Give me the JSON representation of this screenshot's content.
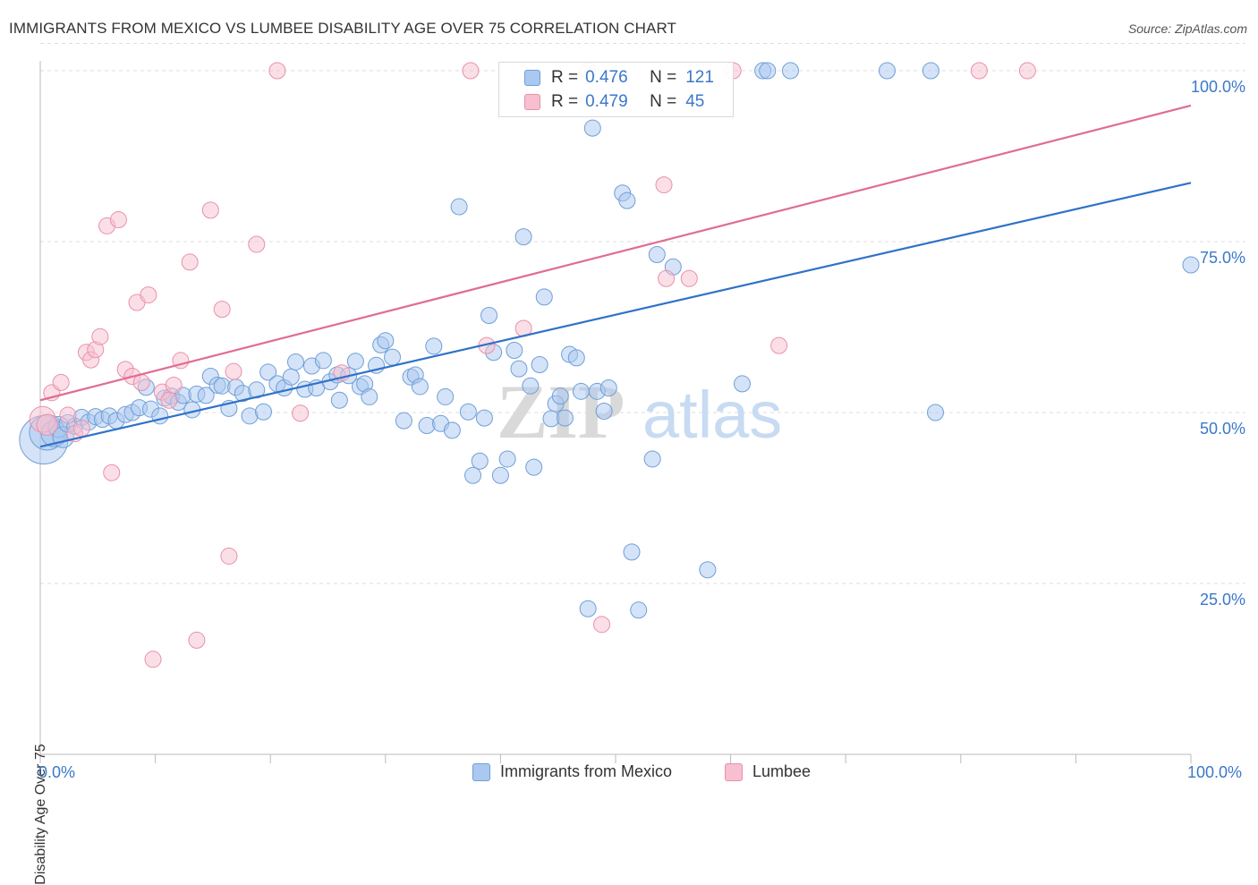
{
  "header": {
    "title": "IMMIGRANTS FROM MEXICO VS LUMBEE DISABILITY AGE OVER 75 CORRELATION CHART",
    "source": "Source: ZipAtlas.com"
  },
  "watermark": {
    "zip": "ZIP",
    "atlas": "atlas"
  },
  "colors": {
    "blue_fill": "#aac8f0",
    "blue_stroke": "#6f9fd8",
    "blue_line": "#2f72c8",
    "pink_fill": "#f7bfd0",
    "pink_stroke": "#e890ac",
    "pink_line": "#e06c93",
    "tick_text": "#3a78c9",
    "grid": "#dddddd"
  },
  "legend_top": {
    "rows": [
      {
        "r_label": "R =",
        "r_value": "0.476",
        "n_label": "N =",
        "n_value": "121"
      },
      {
        "r_label": "R =",
        "r_value": "0.479",
        "n_label": "N =",
        "n_value": "45"
      }
    ]
  },
  "legend_bottom": {
    "items": [
      "Immigrants from Mexico",
      "Lumbee"
    ]
  },
  "chart_data": {
    "type": "scatter",
    "title": "IMMIGRANTS FROM MEXICO VS LUMBEE DISABILITY AGE OVER 75 CORRELATION CHART",
    "xlabel": "",
    "ylabel": "Disability Age Over 75",
    "xlim": [
      0,
      100
    ],
    "ylim": [
      0,
      104
    ],
    "x_tick_labels": [
      "0.0%",
      "100.0%"
    ],
    "y_ticks": [
      25,
      50,
      75,
      100
    ],
    "y_tick_labels": [
      "25.0%",
      "50.0%",
      "75.0%",
      "100.0%"
    ],
    "grid": "horizontal dashed",
    "legend_position": "top-center",
    "series": [
      {
        "name": "Immigrants from Mexico",
        "color": "#aac8f0",
        "trend": {
          "x": [
            0,
            100
          ],
          "y": [
            45.0,
            83.6
          ]
        },
        "points": [
          [
            0.3,
            46.0,
            3
          ],
          [
            0.6,
            47.1,
            2.2
          ],
          [
            1.2,
            46.9,
            1.6
          ],
          [
            1.6,
            47.9,
            1.3
          ],
          [
            2.0,
            46.4,
            1.3
          ],
          [
            2.4,
            48.4,
            1.1
          ],
          [
            3.0,
            48.0,
            1
          ],
          [
            3.6,
            49.3,
            1
          ],
          [
            4.2,
            48.6,
            1
          ],
          [
            4.8,
            49.4,
            1
          ],
          [
            5.4,
            49.0,
            1
          ],
          [
            6.0,
            49.5,
            1
          ],
          [
            6.6,
            48.8,
            1
          ],
          [
            7.4,
            49.7,
            1
          ],
          [
            8.0,
            50.0,
            1
          ],
          [
            8.6,
            50.7,
            1
          ],
          [
            9.2,
            53.7,
            1
          ],
          [
            9.6,
            50.5,
            1
          ],
          [
            10.4,
            49.5,
            1
          ],
          [
            10.8,
            52.1,
            1
          ],
          [
            11.4,
            52.4,
            1
          ],
          [
            12.0,
            51.5,
            1
          ],
          [
            12.4,
            52.5,
            1
          ],
          [
            13.2,
            50.4,
            1
          ],
          [
            13.6,
            52.7,
            1
          ],
          [
            14.4,
            52.5,
            1
          ],
          [
            14.8,
            55.3,
            1
          ],
          [
            15.4,
            54.0,
            1
          ],
          [
            15.8,
            53.9,
            1
          ],
          [
            16.4,
            50.6,
            1
          ],
          [
            17.0,
            53.7,
            1
          ],
          [
            17.6,
            52.8,
            1
          ],
          [
            18.2,
            49.5,
            1
          ],
          [
            18.8,
            53.3,
            1
          ],
          [
            19.4,
            50.1,
            1
          ],
          [
            19.8,
            55.9,
            1
          ],
          [
            20.6,
            54.2,
            1
          ],
          [
            21.2,
            53.6,
            1
          ],
          [
            21.8,
            55.2,
            1
          ],
          [
            22.2,
            57.4,
            1
          ],
          [
            23.0,
            53.4,
            1
          ],
          [
            23.6,
            56.8,
            1
          ],
          [
            24.0,
            53.6,
            1
          ],
          [
            24.6,
            57.6,
            1
          ],
          [
            25.2,
            54.5,
            1
          ],
          [
            25.8,
            55.5,
            1
          ],
          [
            26.0,
            51.8,
            1
          ],
          [
            26.8,
            55.4,
            1
          ],
          [
            27.4,
            57.5,
            1
          ],
          [
            27.8,
            53.8,
            1
          ],
          [
            28.2,
            54.2,
            1
          ],
          [
            28.6,
            52.3,
            1
          ],
          [
            29.2,
            56.9,
            1
          ],
          [
            29.6,
            59.9,
            1
          ],
          [
            30.0,
            60.5,
            1
          ],
          [
            30.6,
            58.1,
            1
          ],
          [
            31.6,
            48.8,
            1
          ],
          [
            32.2,
            55.2,
            1
          ],
          [
            32.6,
            55.5,
            1
          ],
          [
            33.0,
            53.8,
            1
          ],
          [
            33.6,
            48.1,
            1
          ],
          [
            34.2,
            59.7,
            1
          ],
          [
            34.8,
            48.4,
            1
          ],
          [
            35.2,
            52.3,
            1
          ],
          [
            35.8,
            47.4,
            1
          ],
          [
            36.4,
            80.1,
            1
          ],
          [
            37.2,
            50.1,
            1
          ],
          [
            37.6,
            40.8,
            1
          ],
          [
            38.2,
            42.9,
            1
          ],
          [
            38.6,
            49.2,
            1
          ],
          [
            39.0,
            64.2,
            1
          ],
          [
            39.4,
            58.8,
            1
          ],
          [
            40.0,
            40.8,
            1
          ],
          [
            40.6,
            43.2,
            1
          ],
          [
            41.2,
            59.1,
            1
          ],
          [
            41.6,
            56.4,
            1
          ],
          [
            42.0,
            75.7,
            1
          ],
          [
            42.6,
            53.9,
            1
          ],
          [
            42.9,
            42.0,
            1
          ],
          [
            43.4,
            57.0,
            1
          ],
          [
            43.8,
            66.9,
            1
          ],
          [
            44.4,
            49.1,
            1
          ],
          [
            44.8,
            51.3,
            1
          ],
          [
            45.2,
            52.4,
            1
          ],
          [
            45.6,
            49.2,
            1
          ],
          [
            46.0,
            58.5,
            1
          ],
          [
            46.6,
            58.0,
            1
          ],
          [
            47.0,
            53.1,
            1
          ],
          [
            47.6,
            21.3,
            1
          ],
          [
            48.0,
            91.6,
            1
          ],
          [
            48.4,
            53.1,
            1
          ],
          [
            49.0,
            50.2,
            1
          ],
          [
            49.4,
            53.6,
            1
          ],
          [
            50.6,
            82.1,
            1
          ],
          [
            51.0,
            81.0,
            1
          ],
          [
            51.4,
            29.6,
            1
          ],
          [
            52.0,
            21.1,
            1
          ],
          [
            53.2,
            43.2,
            1
          ],
          [
            53.6,
            73.1,
            1
          ],
          [
            55.0,
            71.3,
            1
          ],
          [
            58.0,
            27.0,
            1
          ],
          [
            61.0,
            54.2,
            1
          ],
          [
            62.8,
            100.0,
            1
          ],
          [
            63.2,
            100.0,
            1
          ],
          [
            65.2,
            100.0,
            1
          ],
          [
            73.6,
            100.0,
            1
          ],
          [
            77.4,
            100.0,
            1
          ],
          [
            77.8,
            50.0,
            1
          ],
          [
            100.0,
            71.6,
            1
          ]
        ]
      },
      {
        "name": "Lumbee",
        "color": "#f7bfd0",
        "trend": {
          "x": [
            0,
            100
          ],
          "y": [
            51.8,
            94.9
          ]
        },
        "points": [
          [
            0.2,
            49.0,
            1.6
          ],
          [
            0.6,
            48.2,
            1.3
          ],
          [
            1.0,
            52.9,
            1
          ],
          [
            1.8,
            54.4,
            1
          ],
          [
            2.4,
            49.6,
            1
          ],
          [
            3.0,
            46.9,
            1
          ],
          [
            3.6,
            47.7,
            1
          ],
          [
            4.0,
            58.8,
            1
          ],
          [
            4.4,
            57.7,
            1
          ],
          [
            4.8,
            59.2,
            1
          ],
          [
            5.2,
            61.1,
            1
          ],
          [
            5.8,
            77.3,
            1
          ],
          [
            6.2,
            41.2,
            1
          ],
          [
            6.8,
            78.2,
            1
          ],
          [
            7.4,
            56.3,
            1
          ],
          [
            8.0,
            55.3,
            1
          ],
          [
            8.4,
            66.1,
            1
          ],
          [
            8.8,
            54.4,
            1
          ],
          [
            9.4,
            67.2,
            1
          ],
          [
            9.8,
            13.9,
            1
          ],
          [
            10.6,
            53.0,
            1
          ],
          [
            11.2,
            51.8,
            1
          ],
          [
            11.6,
            54.0,
            1
          ],
          [
            12.2,
            57.6,
            1
          ],
          [
            13.0,
            72.0,
            1
          ],
          [
            13.6,
            16.7,
            1
          ],
          [
            14.8,
            79.6,
            1
          ],
          [
            15.8,
            65.1,
            1
          ],
          [
            16.4,
            29.0,
            1
          ],
          [
            16.8,
            56.0,
            1
          ],
          [
            18.8,
            74.6,
            1
          ],
          [
            20.6,
            100.0,
            1
          ],
          [
            22.6,
            49.9,
            1
          ],
          [
            26.2,
            55.8,
            1
          ],
          [
            37.4,
            100.0,
            1
          ],
          [
            38.8,
            59.8,
            1
          ],
          [
            42.0,
            62.3,
            1
          ],
          [
            47.6,
            100.0,
            1
          ],
          [
            48.8,
            19.0,
            1
          ],
          [
            54.2,
            83.3,
            1
          ],
          [
            54.4,
            69.6,
            1
          ],
          [
            56.4,
            69.6,
            1
          ],
          [
            60.2,
            100.0,
            1
          ],
          [
            64.2,
            59.8,
            1
          ],
          [
            81.6,
            100.0,
            1
          ],
          [
            85.8,
            100.0,
            1
          ]
        ]
      }
    ]
  }
}
